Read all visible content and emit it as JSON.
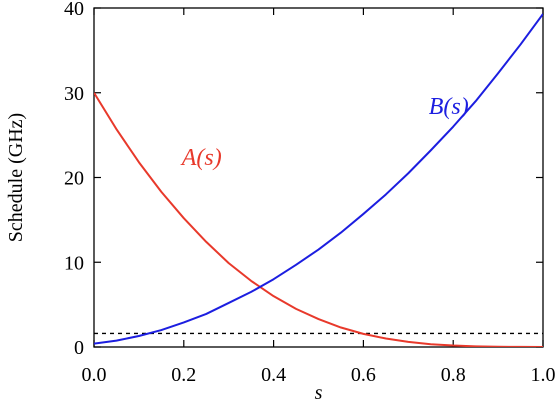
{
  "chart_data": {
    "type": "line",
    "title": "",
    "xlabel": "s",
    "ylabel": "Schedule (GHz)",
    "xlim": [
      0.0,
      1.0
    ],
    "ylim": [
      0,
      40
    ],
    "xticks": [
      "0.0",
      "0.2",
      "0.4",
      "0.6",
      "0.8",
      "1.0"
    ],
    "yticks": [
      "0",
      "10",
      "20",
      "30",
      "40"
    ],
    "grid": false,
    "series": [
      {
        "name": "A(s)",
        "color": "#e8392b",
        "x": [
          0.0,
          0.05,
          0.1,
          0.15,
          0.2,
          0.25,
          0.3,
          0.35,
          0.4,
          0.45,
          0.5,
          0.55,
          0.6,
          0.65,
          0.7,
          0.75,
          0.8,
          0.85,
          0.9,
          0.95,
          1.0
        ],
        "y": [
          30.0,
          25.7,
          21.8,
          18.3,
          15.2,
          12.4,
          9.9,
          7.8,
          6.0,
          4.5,
          3.3,
          2.3,
          1.55,
          1.0,
          0.6,
          0.33,
          0.17,
          0.08,
          0.03,
          0.01,
          0.0
        ]
      },
      {
        "name": "B(s)",
        "color": "#1c1ee0",
        "x": [
          0.0,
          0.05,
          0.1,
          0.15,
          0.2,
          0.25,
          0.3,
          0.35,
          0.4,
          0.45,
          0.5,
          0.55,
          0.6,
          0.65,
          0.7,
          0.75,
          0.8,
          0.85,
          0.9,
          0.95,
          1.0
        ],
        "y": [
          0.4,
          0.75,
          1.3,
          2.0,
          2.9,
          3.9,
          5.2,
          6.5,
          8.0,
          9.7,
          11.5,
          13.5,
          15.7,
          18.0,
          20.5,
          23.2,
          26.0,
          29.0,
          32.3,
          35.7,
          39.3
        ]
      }
    ],
    "reference_line": {
      "y": 1.6,
      "style": "dashed",
      "color": "#000000"
    },
    "annotations": [
      {
        "text": "A(s)",
        "color": "#e8392b",
        "x": 0.24,
        "y": 21.5
      },
      {
        "text": "B(s)",
        "color": "#1c1ee0",
        "x": 0.79,
        "y": 27.5
      }
    ]
  }
}
